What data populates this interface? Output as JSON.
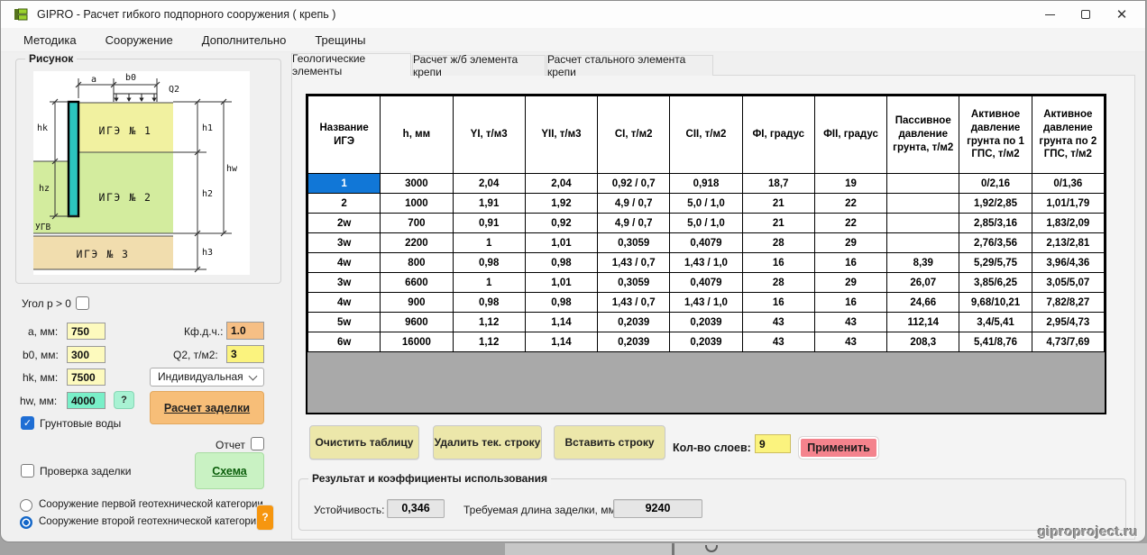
{
  "titlebar": {
    "title": "GIPRO - Расчет гибкого подпорного сооружения ( крепь )"
  },
  "menu": {
    "items": [
      "Методика",
      "Сооружение",
      "Дополнительно",
      "Трещины"
    ]
  },
  "left": {
    "figure_group": "Рисунок",
    "figure": {
      "a": "a",
      "b0": "b0",
      "q2": "Q2",
      "layer1": "ИГЭ № 1",
      "layer2": "ИГЭ № 2",
      "layer3": "ИГЭ № 3",
      "hk": "hk",
      "hz": "hz",
      "ugv": "УГВ",
      "h1": "h1",
      "h2": "h2",
      "h3": "h3",
      "hw": "hw"
    },
    "angle_label": "Угол p > 0",
    "fields": {
      "a": {
        "label": "a, мм:",
        "value": "750"
      },
      "b0": {
        "label": "b0, мм:",
        "value": "300"
      },
      "hk": {
        "label": "hk, мм:",
        "value": "7500"
      },
      "hw": {
        "label": "hw, мм:",
        "value": "4000"
      },
      "kf": {
        "label": "Кф.д.ч.:",
        "value": "1.0"
      },
      "q2": {
        "label": "Q2, т/м2:",
        "value": "3"
      }
    },
    "hw_help": "?",
    "method_value": "Индивидуальная",
    "calc_button": "Расчет заделки",
    "groundwater_label": "Грунтовые воды",
    "report_label": "Отчет",
    "check_label": "Проверка заделки",
    "schema_button": "Схема",
    "category1_label": "Сооружение первой геотехнической категории",
    "category2_label": "Сооружение второй геотехнической категории",
    "category_help": "?"
  },
  "tabs": [
    {
      "label": "Геологические элементы",
      "active": true
    },
    {
      "label": "Расчет ж/б элемента крепи",
      "active": false
    },
    {
      "label": "Расчет стального элемента крепи",
      "active": false
    }
  ],
  "table": {
    "headers": [
      "Название ИГЭ",
      "h, мм",
      "YI, т/м3",
      "YII, т/м3",
      "CI, т/м2",
      "CII, т/м2",
      "ФI, градус",
      "ФII, градус",
      "Пассивное давление грунта, т/м2",
      "Активное давление грунта по 1 ГПС, т/м2",
      "Активное давление грунта по 2 ГПС, т/м2"
    ],
    "selected": {
      "row": 0,
      "col": 0
    },
    "rows": [
      [
        "1",
        "3000",
        "2,04",
        "2,04",
        "0,92 / 0,7",
        "0,918",
        "18,7",
        "19",
        "",
        "0/2,16",
        "0/1,36"
      ],
      [
        "2",
        "1000",
        "1,91",
        "1,92",
        "4,9 / 0,7",
        "5,0 / 1,0",
        "21",
        "22",
        "",
        "1,92/2,85",
        "1,01/1,79"
      ],
      [
        "2w",
        "700",
        "0,91",
        "0,92",
        "4,9 / 0,7",
        "5,0 / 1,0",
        "21",
        "22",
        "",
        "2,85/3,16",
        "1,83/2,09"
      ],
      [
        "3w",
        "2200",
        "1",
        "1,01",
        "0,3059",
        "0,4079",
        "28",
        "29",
        "",
        "2,76/3,56",
        "2,13/2,81"
      ],
      [
        "4w",
        "800",
        "0,98",
        "0,98",
        "1,43 / 0,7",
        "1,43 / 1,0",
        "16",
        "16",
        "8,39",
        "5,29/5,75",
        "3,96/4,36"
      ],
      [
        "3w",
        "6600",
        "1",
        "1,01",
        "0,3059",
        "0,4079",
        "28",
        "29",
        "26,07",
        "3,85/6,25",
        "3,05/5,07"
      ],
      [
        "4w",
        "900",
        "0,98",
        "0,98",
        "1,43 / 0,7",
        "1,43 / 1,0",
        "16",
        "16",
        "24,66",
        "9,68/10,21",
        "7,82/8,27"
      ],
      [
        "5w",
        "9600",
        "1,12",
        "1,14",
        "0,2039",
        "0,2039",
        "43",
        "43",
        "112,14",
        "3,4/5,41",
        "2,95/4,73"
      ],
      [
        "6w",
        "16000",
        "1,12",
        "1,14",
        "0,2039",
        "0,2039",
        "43",
        "43",
        "208,3",
        "5,41/8,76",
        "4,73/7,69"
      ]
    ]
  },
  "actions": {
    "clear": "Очистить таблицу",
    "delete_row": "Удалить тек. строку",
    "insert_row": "Вставить строку",
    "layers_label": "Кол-во слоев:",
    "layers_value": "9",
    "apply": "Применить"
  },
  "results": {
    "group_label": "Результат и коэффициенты использования",
    "stability_label": "Устойчивость:",
    "stability_value": "0,346",
    "length_label": "Требуемая длина заделки, мм:",
    "length_value": "9240"
  },
  "watermark": "giproproject.ru",
  "colors": {
    "selection_blue": "#1177d7",
    "accent_blue": "#1f6ed4",
    "input_yellow": "#fdfabe",
    "input_orange": "#f6bf85",
    "input_mint": "#79efc8",
    "button_orange": "#f7be78",
    "button_green": "#c9f2c3",
    "button_khaki": "#ece7aa",
    "apply_pink": "#f4838d",
    "help_orange": "#f6960f",
    "layer1_yellow": "#f1f1a0",
    "layer2_green": "#d3ec9e",
    "layer3_tan": "#f1ddae",
    "wall_teal": "#2cc4be"
  }
}
